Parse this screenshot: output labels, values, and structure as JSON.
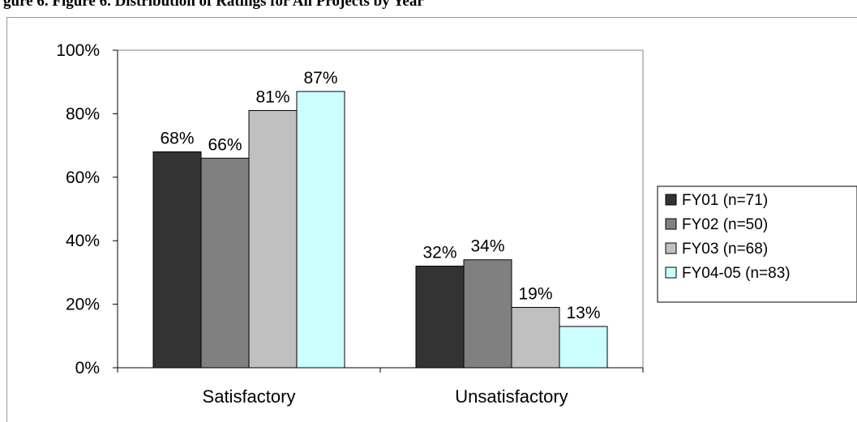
{
  "caption": "gure 6.  Figure 6. Distribution of Ratings for All Projects by Year",
  "chart_data": {
    "type": "bar",
    "categories": [
      "Satisfactory",
      "Unsatisfactory"
    ],
    "series": [
      {
        "name": "FY01 (n=71)",
        "values": [
          68,
          32
        ],
        "labels": [
          "68%",
          "32%"
        ],
        "color": "#333333"
      },
      {
        "name": "FY02 (n=50)",
        "values": [
          66,
          34
        ],
        "labels": [
          "66%",
          "34%"
        ],
        "color": "#808080"
      },
      {
        "name": "FY03 (n=68)",
        "values": [
          81,
          19
        ],
        "labels": [
          "81%",
          "19%"
        ],
        "color": "#c0c0c0"
      },
      {
        "name": "FY04-05 (n=83)",
        "values": [
          87,
          13
        ],
        "labels": [
          "87%",
          "13%"
        ],
        "color": "#ccffff"
      }
    ],
    "ylim": [
      0,
      100
    ],
    "yticks": [
      0,
      20,
      40,
      60,
      80,
      100
    ],
    "ytick_labels": [
      "0%",
      "20%",
      "40%",
      "60%",
      "80%",
      "100%"
    ],
    "grid": false,
    "legend": "right"
  }
}
